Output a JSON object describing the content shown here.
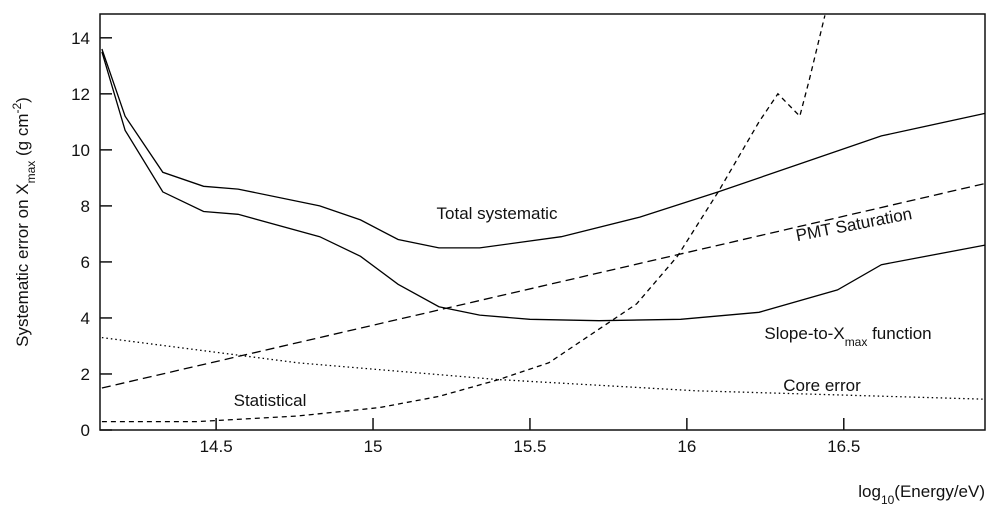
{
  "chart_data": {
    "type": "line",
    "xlabel": [
      "log",
      "10",
      "(Energy/eV)"
    ],
    "ylabel": [
      "Systematic error on X",
      "max",
      " (g cm",
      "-2",
      ")"
    ],
    "xlim": [
      14.13,
      16.95
    ],
    "ylim": [
      0,
      14.85
    ],
    "xticks": [
      14.5,
      15,
      15.5,
      16,
      16.5
    ],
    "yticks": [
      0,
      2,
      4,
      6,
      8,
      10,
      12,
      14
    ],
    "annotations": [
      [
        "Total systematic"
      ],
      [
        "PMT Saturation"
      ],
      [
        "Slope-to-X",
        "max",
        " function"
      ],
      [
        "Core error"
      ],
      [
        "Statistical"
      ]
    ],
    "series": [
      {
        "color": "#000000",
        "dash": "solid",
        "x": [
          14.136,
          14.21,
          14.33,
          14.46,
          14.57,
          14.83,
          14.96,
          15.08,
          15.21,
          15.34,
          15.6,
          15.85,
          16.1,
          16.36,
          16.62,
          16.95
        ],
        "values": [
          13.6,
          11.2,
          9.2,
          8.7,
          8.6,
          8.0,
          7.5,
          6.8,
          6.5,
          6.5,
          6.9,
          7.6,
          8.5,
          9.5,
          10.5,
          11.3
        ]
      },
      {
        "color": "#000000",
        "dash": "solid",
        "x": [
          14.136,
          14.21,
          14.33,
          14.46,
          14.57,
          14.83,
          14.96,
          15.08,
          15.21,
          15.34,
          15.5,
          15.72,
          15.98,
          16.23,
          16.48,
          16.62,
          16.95
        ],
        "values": [
          13.5,
          10.7,
          8.5,
          7.8,
          7.7,
          6.9,
          6.2,
          5.2,
          4.4,
          4.1,
          3.95,
          3.9,
          3.95,
          4.2,
          5.0,
          5.9,
          6.6
        ]
      },
      {
        "color": "#000000",
        "dash": "dashed",
        "x": [
          14.136,
          16.95
        ],
        "values": [
          1.5,
          8.8
        ]
      },
      {
        "color": "#000000",
        "dash": "dotted",
        "x": [
          14.136,
          14.76,
          15.4,
          16.03,
          16.95
        ],
        "values": [
          3.3,
          2.4,
          1.8,
          1.4,
          1.1
        ]
      },
      {
        "color": "#000000",
        "dash": "short-dashed",
        "x": [
          14.136,
          14.44,
          14.76,
          15.02,
          15.21,
          15.4,
          15.56,
          15.68,
          15.84,
          15.97,
          16.1,
          16.23,
          16.29,
          16.36,
          16.39,
          16.44
        ],
        "values": [
          0.3,
          0.3,
          0.5,
          0.8,
          1.2,
          1.8,
          2.4,
          3.3,
          4.5,
          6.2,
          8.5,
          11.0,
          12.0,
          11.2,
          12.5,
          14.8
        ]
      }
    ]
  }
}
